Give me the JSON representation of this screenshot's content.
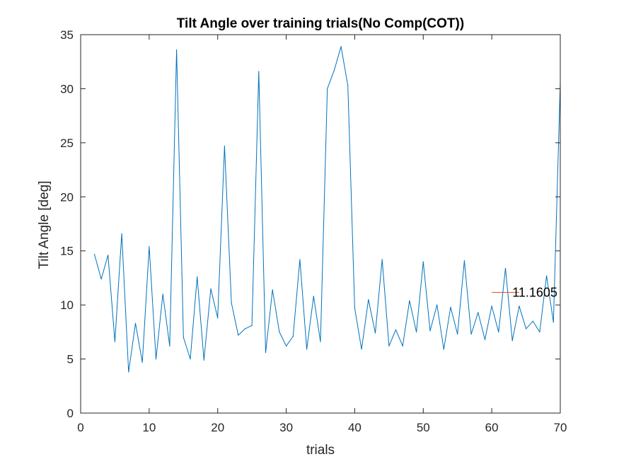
{
  "chart_data": {
    "type": "line",
    "title": "Tilt Angle over training trials(No Comp(COT))",
    "xlabel": "trials",
    "ylabel": "Tilt Angle [deg]",
    "xlim": [
      0,
      70
    ],
    "ylim": [
      0,
      35
    ],
    "xticks": [
      0,
      10,
      20,
      30,
      40,
      50,
      60,
      70
    ],
    "yticks": [
      0,
      5,
      10,
      15,
      20,
      25,
      30,
      35
    ],
    "grid": false,
    "series": [
      {
        "color": "#0072BD",
        "x": [
          2,
          3,
          4,
          5,
          6,
          7,
          8,
          9,
          10,
          11,
          12,
          13,
          14,
          15,
          16,
          17,
          18,
          19,
          20,
          21,
          22,
          23,
          24,
          25,
          26,
          27,
          28,
          29,
          30,
          31,
          32,
          33,
          34,
          35,
          36,
          37,
          38,
          39,
          40,
          41,
          42,
          43,
          44,
          45,
          46,
          47,
          48,
          49,
          50,
          51,
          52,
          53,
          54,
          55,
          56,
          57,
          58,
          59,
          60,
          61,
          62,
          63,
          64,
          65,
          66,
          67,
          68,
          69,
          70
        ],
        "y": [
          14.7,
          12.4,
          14.6,
          6.6,
          16.6,
          3.8,
          8.3,
          4.7,
          15.4,
          5.0,
          11.0,
          6.2,
          33.6,
          7.0,
          5.0,
          12.6,
          4.9,
          11.5,
          8.8,
          24.7,
          10.2,
          7.2,
          7.8,
          8.1,
          31.6,
          5.6,
          11.4,
          7.5,
          6.2,
          7.1,
          14.2,
          5.9,
          10.8,
          6.6,
          30.0,
          31.7,
          33.9,
          30.3,
          9.7,
          5.9,
          10.5,
          7.4,
          14.2,
          6.2,
          7.7,
          6.2,
          10.4,
          7.5,
          14.0,
          7.6,
          10.0,
          5.9,
          9.8,
          7.3,
          14.1,
          7.3,
          9.3,
          6.8,
          9.9,
          7.5,
          13.4,
          6.7,
          9.9,
          7.8,
          8.5,
          7.5,
          12.7,
          8.4,
          30.6
        ]
      },
      {
        "color": "#D95319",
        "x": [
          60,
          64
        ],
        "y": [
          11.1605,
          11.1605
        ]
      }
    ],
    "annotations": [
      {
        "text": "11.1605",
        "x": 63,
        "y": 11.1605
      }
    ]
  }
}
